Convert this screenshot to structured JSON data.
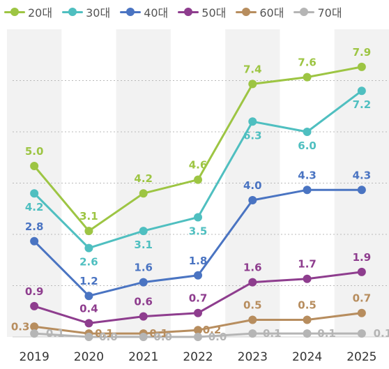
{
  "chart_data": {
    "type": "line",
    "x": [
      "2019",
      "2020",
      "2021",
      "2022",
      "2023",
      "2024",
      "2025"
    ],
    "series": [
      {
        "name": "20대",
        "color": "#9dc543",
        "values": [
          5.0,
          3.1,
          4.2,
          4.6,
          7.4,
          7.6,
          7.9
        ],
        "labels": [
          "5.0",
          "3.1",
          "4.2",
          "4.6",
          "7.4",
          "7.6",
          "7.9"
        ]
      },
      {
        "name": "30대",
        "color": "#4fbfc0",
        "values": [
          4.2,
          2.6,
          3.1,
          3.5,
          6.3,
          6.0,
          7.2
        ],
        "labels": [
          "4.2",
          "2.6",
          "3.1",
          "3.5",
          "6.3",
          "6.0",
          "7.2"
        ]
      },
      {
        "name": "40대",
        "color": "#4a74c2",
        "values": [
          2.8,
          1.2,
          1.6,
          1.8,
          4.0,
          4.3,
          4.3
        ],
        "labels": [
          "2.8",
          "1.2",
          "1.6",
          "1.8",
          "4.0",
          "4.3",
          "4.3"
        ]
      },
      {
        "name": "50대",
        "color": "#8e3d8e",
        "values": [
          0.9,
          0.4,
          0.6,
          0.7,
          1.6,
          1.7,
          1.9
        ],
        "labels": [
          "0.9",
          "0.4",
          "0.6",
          "0.7",
          "1.6",
          "1.7",
          "1.9"
        ]
      },
      {
        "name": "60대",
        "color": "#b78d5e",
        "values": [
          0.3,
          0.1,
          0.1,
          0.2,
          0.5,
          0.5,
          0.7
        ],
        "labels": [
          "0.3",
          "0.1",
          "0.1",
          "0.2",
          "0.5",
          "0.5",
          "0.7"
        ]
      },
      {
        "name": "70대",
        "color": "#b5b5b5",
        "values": [
          0.1,
          0.0,
          0.0,
          0.0,
          0.1,
          0.1,
          0.1
        ],
        "labels": [
          "0.1",
          "0.0",
          "0.0",
          "0.0",
          "0.1",
          "0.1",
          "0.1"
        ]
      }
    ],
    "title": "",
    "xlabel": "",
    "ylabel": "",
    "ylim": [
      0,
      9.0
    ],
    "grid": "horizontal-dotted",
    "legend": "top"
  }
}
